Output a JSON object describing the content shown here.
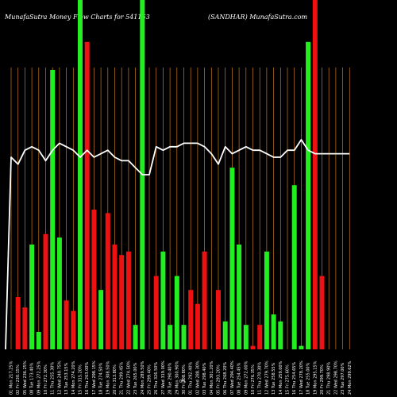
{
  "header": {
    "left": "MunafaSutra  Money Flow  Charts for 541163",
    "right": "(SANDHAR) MunafaSutra.com"
  },
  "axis_marker": "0%",
  "colors": {
    "background": "#000000",
    "up": "#22ee22",
    "down": "#ee1111",
    "line": "#ffffff",
    "grid": "#c87a1e"
  },
  "chart_data": {
    "type": "bar",
    "grid": true,
    "ylim": [
      0,
      100
    ],
    "line_ylim": [
      0,
      100
    ],
    "categories": [
      "01 Mon 217.25%",
      "02 Fri 230.15%",
      "05 Wed 236.25%",
      "08 Tue 173.40%",
      "09 Mon 272.25%",
      "10 Fri 272.30%",
      "11 Thu 255.30%",
      "12 Wed 240.75%",
      "13 Tue 253.15%",
      "14 Mon 274.20%",
      "15 Fri 315.20%",
      "16 Thu 263.00%",
      "17 Wed 298.15%",
      "18 Tue 274.50%",
      "19 Mon 308.50%",
      "20 Fri 313.80%",
      "21 Thu 299.45%",
      "22 Wed 274.50%",
      "23 Tue 265.00%",
      "24 Mon 289.50%",
      "25 Fri 299.40%",
      "26 Thu 326.50%",
      "27 Wed 319.00%",
      "28 Tue 290.40%",
      "29 Mon 300.90%",
      "30 Fri 308.80%",
      "01 Thu 292.40%",
      "02 Wed 288.30%",
      "03 Tue 298.40%",
      "04 Mon 301.20%",
      "05 Fri 293.20%",
      "06 Thu 268.20%",
      "07 Wed 294.40%",
      "08 Tue 254.45%",
      "09 Mon 272.00%",
      "10 Fri 276.35%",
      "11 Thu 270.30%",
      "12 Wed 279.70%",
      "13 Tue 258.55%",
      "14 Mon 259.00%",
      "15 Fri 275.60%",
      "16 Thu 254.65%",
      "17 Wed 278.20%",
      "18 Tue 255.00%",
      "19 Mon 295.15%",
      "20 Fri 299.70%",
      "21 Thu 298.90%",
      "22 Wed 298.70%",
      "23 Tue 297.00%",
      "24 Mon 299.62%"
    ],
    "series": [
      {
        "values": [
          0,
          15,
          12,
          30,
          5,
          33,
          80,
          32,
          14,
          11,
          100,
          88,
          40,
          17,
          39,
          30,
          27,
          28,
          7,
          100,
          0,
          21,
          28,
          7,
          21,
          7,
          17,
          13,
          28,
          0,
          17,
          8,
          52,
          30,
          7,
          1,
          7,
          28,
          10,
          8,
          0,
          47,
          1,
          88,
          100,
          21,
          0,
          0,
          0,
          0
        ],
        "directions": [
          "d",
          "d",
          "d",
          "u",
          "u",
          "d",
          "u",
          "u",
          "d",
          "d",
          "u",
          "d",
          "d",
          "u",
          "d",
          "d",
          "d",
          "d",
          "u",
          "u",
          "d",
          "d",
          "u",
          "u",
          "u",
          "u",
          "d",
          "d",
          "d",
          "u",
          "d",
          "u",
          "u",
          "u",
          "u",
          "d",
          "d",
          "u",
          "u",
          "u",
          "d",
          "u",
          "u",
          "u",
          "d",
          "d",
          "d",
          "d",
          "d",
          "d"
        ]
      }
    ],
    "line_values": [
      55,
      53,
      57,
      58,
      57,
      54,
      57,
      59,
      58,
      57,
      55,
      57,
      55,
      56,
      57,
      55,
      54,
      54,
      52,
      50,
      50,
      58,
      57,
      58,
      58,
      59,
      59,
      59,
      58,
      56,
      53,
      58,
      56,
      57,
      58,
      57,
      57,
      56,
      55,
      55,
      57,
      57,
      60,
      57,
      56,
      56,
      56,
      56,
      56,
      56
    ]
  }
}
